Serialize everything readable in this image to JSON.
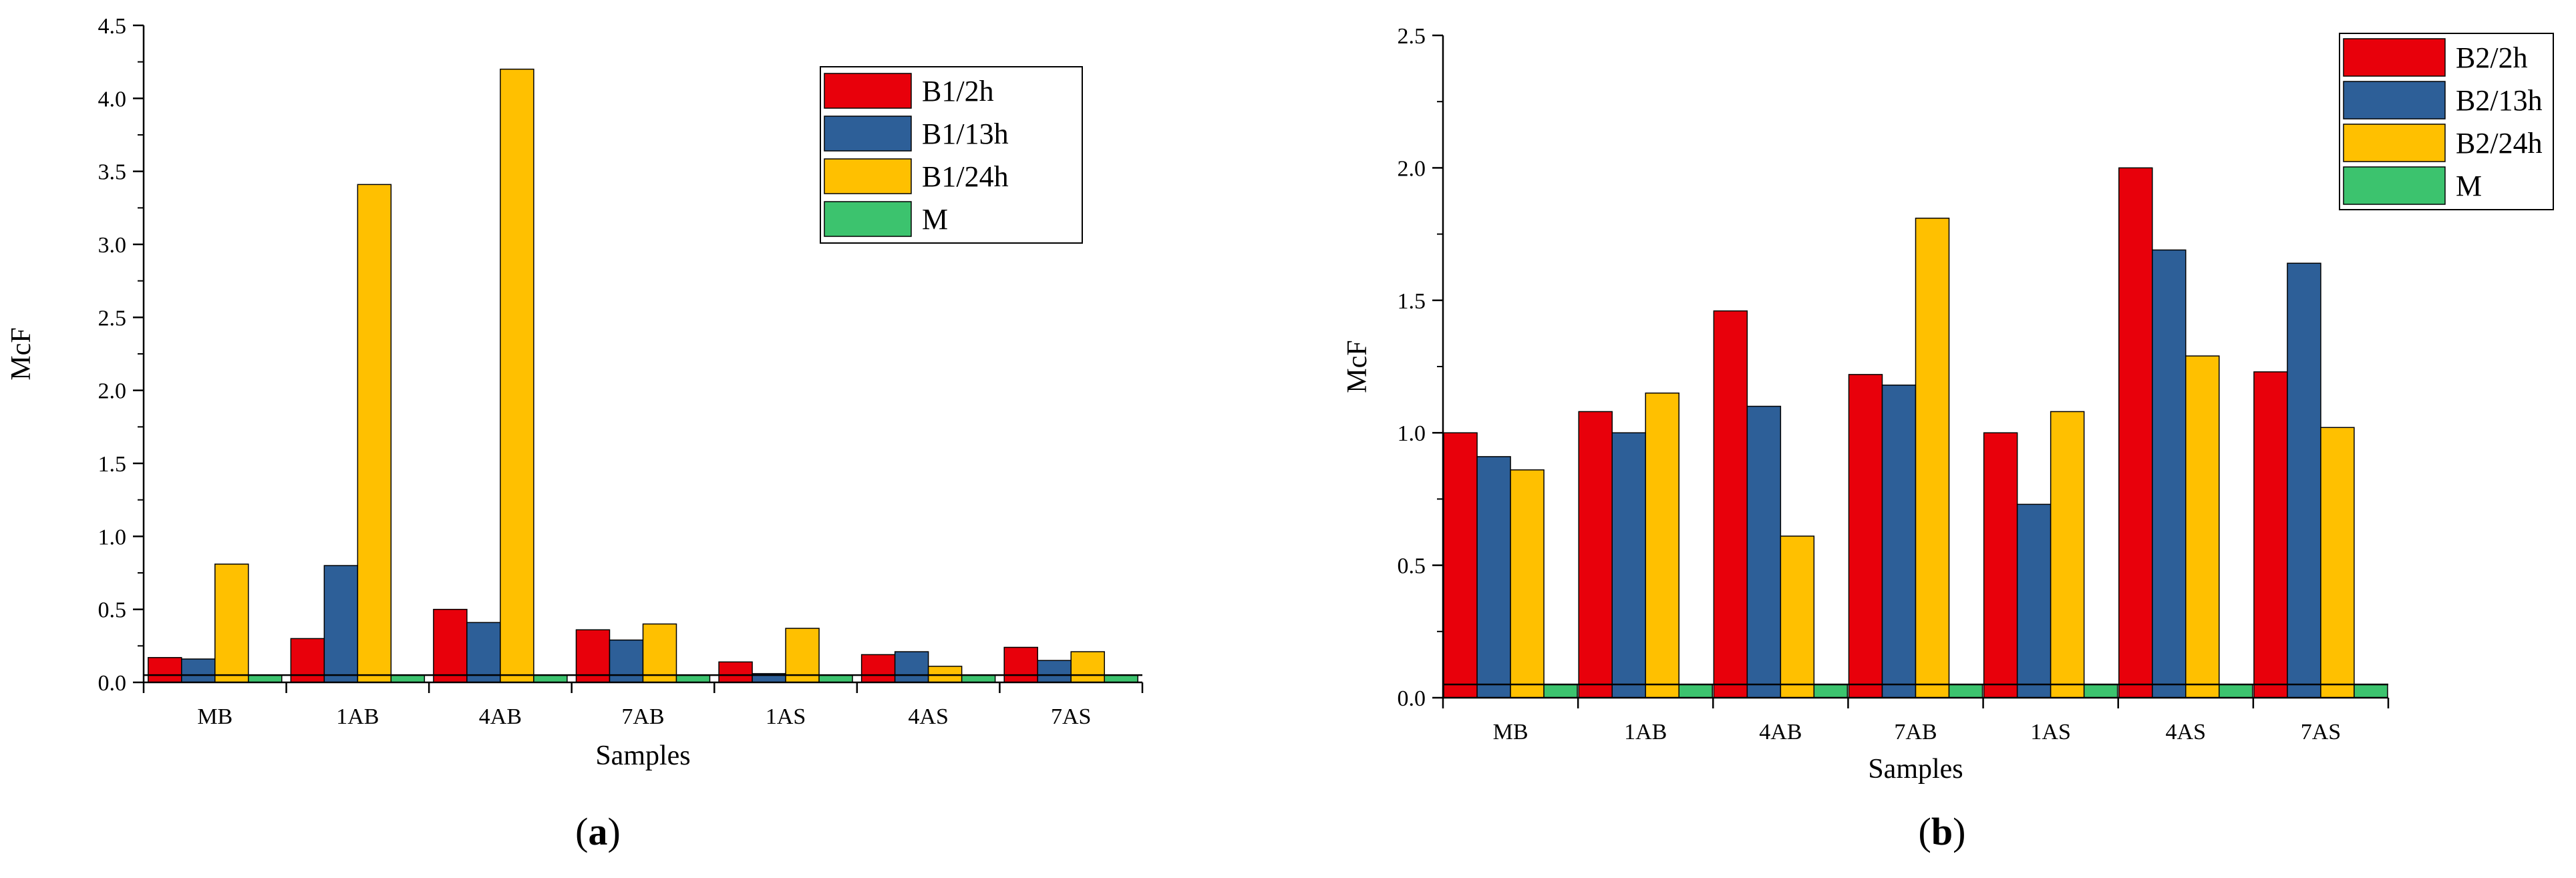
{
  "chart_data": [
    {
      "type": "bar",
      "xlabel": "Samples",
      "ylabel": "McF",
      "categories": [
        "MB",
        "1AB",
        "4AB",
        "7AB",
        "1AS",
        "4AS",
        "7AS"
      ],
      "ylim": [
        0,
        4.5
      ],
      "yticks": [
        "0.0",
        "0.5",
        "1.0",
        "1.5",
        "2.0",
        "2.5",
        "3.0",
        "3.5",
        "4.0",
        "4.5"
      ],
      "series": [
        {
          "name": "B1/2h",
          "color": "#e8000b",
          "values": [
            0.17,
            0.3,
            0.5,
            0.36,
            0.14,
            0.19,
            0.24
          ]
        },
        {
          "name": "B1/13h",
          "color": "#2d5f98",
          "values": [
            0.16,
            0.8,
            0.41,
            0.29,
            0.06,
            0.21,
            0.15
          ]
        },
        {
          "name": "B1/24h",
          "color": "#ffc000",
          "values": [
            0.81,
            3.41,
            4.2,
            0.4,
            0.37,
            0.11,
            0.21
          ]
        },
        {
          "name": "M",
          "color": "#3cc36e",
          "values": [
            0.05,
            0.05,
            0.05,
            0.05,
            0.05,
            0.05,
            0.05
          ]
        }
      ],
      "reference_line": 0.05,
      "legend_position": "top-right",
      "grid": false,
      "caption": [
        "(",
        "a",
        ")"
      ]
    },
    {
      "type": "bar",
      "xlabel": "Samples",
      "ylabel": "McF",
      "categories": [
        "MB",
        "1AB",
        "4AB",
        "7AB",
        "1AS",
        "4AS",
        "7AS"
      ],
      "ylim": [
        0,
        2.5
      ],
      "yticks": [
        "0.0",
        "0.5",
        "1.0",
        "1.5",
        "2.0",
        "2.5"
      ],
      "series": [
        {
          "name": "B2/2h",
          "color": "#e8000b",
          "values": [
            1.0,
            1.08,
            1.46,
            1.22,
            1.0,
            2.0,
            1.23
          ]
        },
        {
          "name": "B2/13h",
          "color": "#2d5f98",
          "values": [
            0.91,
            1.0,
            1.1,
            1.18,
            0.73,
            1.69,
            1.64
          ]
        },
        {
          "name": "B2/24h",
          "color": "#ffc000",
          "values": [
            0.86,
            1.15,
            0.61,
            1.81,
            1.08,
            1.29,
            1.02
          ]
        },
        {
          "name": "M",
          "color": "#3cc36e",
          "values": [
            0.05,
            0.05,
            0.05,
            0.05,
            0.05,
            0.05,
            0.05
          ]
        }
      ],
      "reference_line": 0.05,
      "legend_position": "top-right",
      "grid": false,
      "caption": [
        "(",
        "b",
        ")"
      ]
    }
  ]
}
